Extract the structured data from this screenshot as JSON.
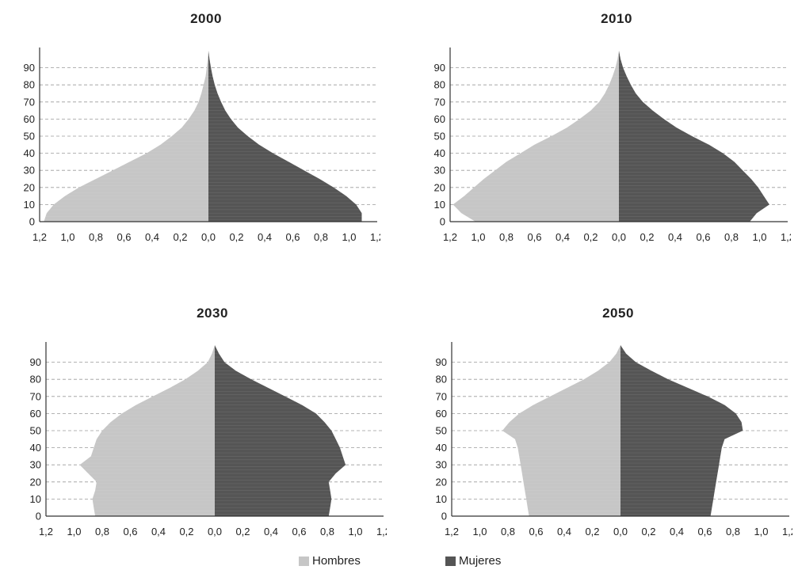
{
  "chart_data": [
    {
      "type": "bar",
      "title": "2000",
      "y_ticks": [
        0,
        10,
        20,
        30,
        40,
        50,
        60,
        70,
        80,
        90
      ],
      "x_ticks": [
        "1,2",
        "1,0",
        "0,8",
        "0,6",
        "0,4",
        "0,2",
        "0,0",
        "0,2",
        "0,4",
        "0,6",
        "0,8",
        "1,0",
        "1,2"
      ],
      "xlim": [
        -1.2,
        1.2
      ],
      "ylim": [
        0,
        100
      ],
      "age": [
        0,
        5,
        10,
        15,
        20,
        25,
        30,
        35,
        40,
        45,
        50,
        55,
        60,
        65,
        70,
        75,
        80,
        85,
        90,
        95,
        100
      ],
      "series": [
        {
          "name": "Hombres",
          "values": [
            1.17,
            1.15,
            1.1,
            1.02,
            0.92,
            0.8,
            0.68,
            0.56,
            0.44,
            0.34,
            0.26,
            0.19,
            0.14,
            0.1,
            0.07,
            0.05,
            0.035,
            0.02,
            0.012,
            0.005,
            0.0
          ]
        },
        {
          "name": "Mujeres",
          "values": [
            1.09,
            1.09,
            1.05,
            0.98,
            0.89,
            0.79,
            0.68,
            0.57,
            0.46,
            0.36,
            0.28,
            0.21,
            0.16,
            0.12,
            0.09,
            0.065,
            0.045,
            0.03,
            0.018,
            0.008,
            0.0
          ]
        }
      ]
    },
    {
      "type": "bar",
      "title": "2010",
      "y_ticks": [
        0,
        10,
        20,
        30,
        40,
        50,
        60,
        70,
        80,
        90
      ],
      "x_ticks": [
        "1,2",
        "1,0",
        "0,8",
        "0,6",
        "0,4",
        "0,2",
        "0,0",
        "0,2",
        "0,4",
        "0,6",
        "0,8",
        "1,0",
        "1,2"
      ],
      "xlim": [
        -1.2,
        1.2
      ],
      "ylim": [
        0,
        100
      ],
      "age": [
        0,
        5,
        10,
        15,
        20,
        25,
        30,
        35,
        40,
        45,
        50,
        55,
        60,
        65,
        70,
        75,
        80,
        85,
        90,
        95,
        100
      ],
      "series": [
        {
          "name": "Hombres",
          "values": [
            1.02,
            1.12,
            1.18,
            1.1,
            1.03,
            0.96,
            0.88,
            0.8,
            0.7,
            0.6,
            0.48,
            0.37,
            0.28,
            0.2,
            0.14,
            0.1,
            0.07,
            0.045,
            0.025,
            0.01,
            0.0
          ]
        },
        {
          "name": "Mujeres",
          "values": [
            0.93,
            0.98,
            1.07,
            1.03,
            0.99,
            0.94,
            0.88,
            0.82,
            0.74,
            0.64,
            0.52,
            0.41,
            0.32,
            0.24,
            0.17,
            0.12,
            0.085,
            0.055,
            0.03,
            0.012,
            0.0
          ]
        }
      ]
    },
    {
      "type": "bar",
      "title": "2030",
      "y_ticks": [
        0,
        10,
        20,
        30,
        40,
        50,
        60,
        70,
        80,
        90
      ],
      "x_ticks": [
        "1,2",
        "1,0",
        "0,8",
        "0,6",
        "0,4",
        "0,2",
        "0,0",
        "0,2",
        "0,4",
        "0,6",
        "0,8",
        "1,0",
        "1,2"
      ],
      "xlim": [
        -1.2,
        1.2
      ],
      "ylim": [
        0,
        100
      ],
      "age": [
        0,
        5,
        10,
        15,
        20,
        25,
        30,
        35,
        40,
        45,
        50,
        55,
        60,
        65,
        70,
        75,
        80,
        85,
        90,
        95,
        100
      ],
      "series": [
        {
          "name": "Hombres",
          "values": [
            0.85,
            0.86,
            0.87,
            0.85,
            0.84,
            0.9,
            0.96,
            0.88,
            0.86,
            0.84,
            0.8,
            0.74,
            0.66,
            0.56,
            0.44,
            0.32,
            0.21,
            0.12,
            0.05,
            0.02,
            0.0
          ]
        },
        {
          "name": "Mujeres",
          "values": [
            0.81,
            0.82,
            0.83,
            0.82,
            0.81,
            0.86,
            0.93,
            0.91,
            0.89,
            0.86,
            0.83,
            0.78,
            0.72,
            0.62,
            0.5,
            0.38,
            0.26,
            0.15,
            0.07,
            0.03,
            0.0
          ]
        }
      ]
    },
    {
      "type": "bar",
      "title": "2050",
      "y_ticks": [
        0,
        10,
        20,
        30,
        40,
        50,
        60,
        70,
        80,
        90
      ],
      "x_ticks": [
        "1,2",
        "1,0",
        "0,8",
        "0,6",
        "0,4",
        "0,2",
        "0,0",
        "0,2",
        "0,4",
        "0,6",
        "0,8",
        "1,0",
        "1,2"
      ],
      "xlim": [
        -1.2,
        1.2
      ],
      "ylim": [
        0,
        100
      ],
      "age": [
        0,
        5,
        10,
        15,
        20,
        25,
        30,
        35,
        40,
        45,
        50,
        55,
        60,
        65,
        70,
        75,
        80,
        85,
        90,
        95,
        100
      ],
      "series": [
        {
          "name": "Hombres",
          "values": [
            0.65,
            0.66,
            0.67,
            0.68,
            0.69,
            0.7,
            0.71,
            0.72,
            0.73,
            0.75,
            0.84,
            0.79,
            0.72,
            0.62,
            0.5,
            0.38,
            0.26,
            0.16,
            0.08,
            0.03,
            0.0
          ]
        },
        {
          "name": "Mujeres",
          "values": [
            0.64,
            0.65,
            0.66,
            0.67,
            0.68,
            0.69,
            0.7,
            0.71,
            0.72,
            0.74,
            0.87,
            0.86,
            0.82,
            0.74,
            0.62,
            0.48,
            0.34,
            0.22,
            0.11,
            0.04,
            0.0
          ]
        }
      ]
    }
  ],
  "legend": {
    "items": [
      {
        "label": "Hombres",
        "color": "#c6c6c6"
      },
      {
        "label": "Mujeres",
        "color": "#555555"
      }
    ]
  }
}
